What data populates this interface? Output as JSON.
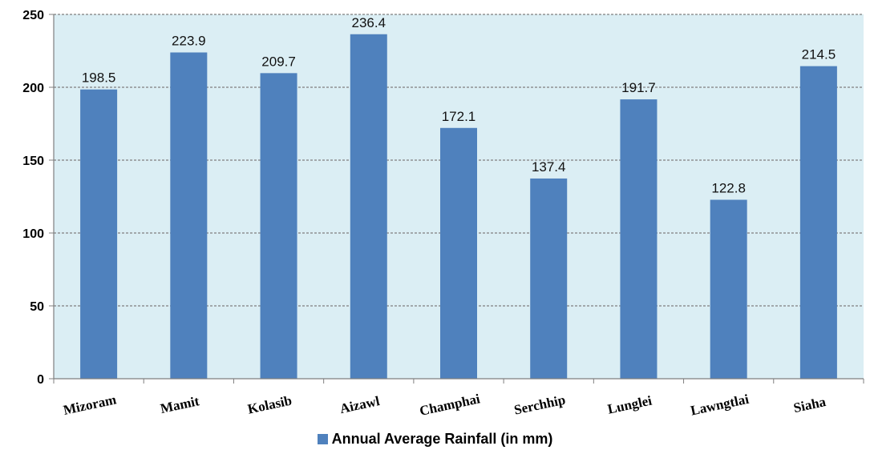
{
  "chart_data": {
    "type": "bar",
    "categories": [
      "Mizoram",
      "Mamit",
      "Kolasib",
      "Aizawl",
      "Champhai",
      "Serchhip",
      "Lunglei",
      "Lawngtlai",
      "Siaha"
    ],
    "series": [
      {
        "name": "Annual Average Rainfall (in mm)",
        "values": [
          198.5,
          223.9,
          209.7,
          236.4,
          172.1,
          137.4,
          191.7,
          122.8,
          214.5
        ]
      }
    ],
    "ylim": [
      0,
      250
    ],
    "yticks": [
      0,
      50,
      100,
      150,
      200,
      250
    ],
    "grid": true,
    "legend": "bottom",
    "colors": {
      "bar": "#4f81bd",
      "plot_bg": "#dbeef4",
      "grid": "#7f7f7f"
    }
  }
}
